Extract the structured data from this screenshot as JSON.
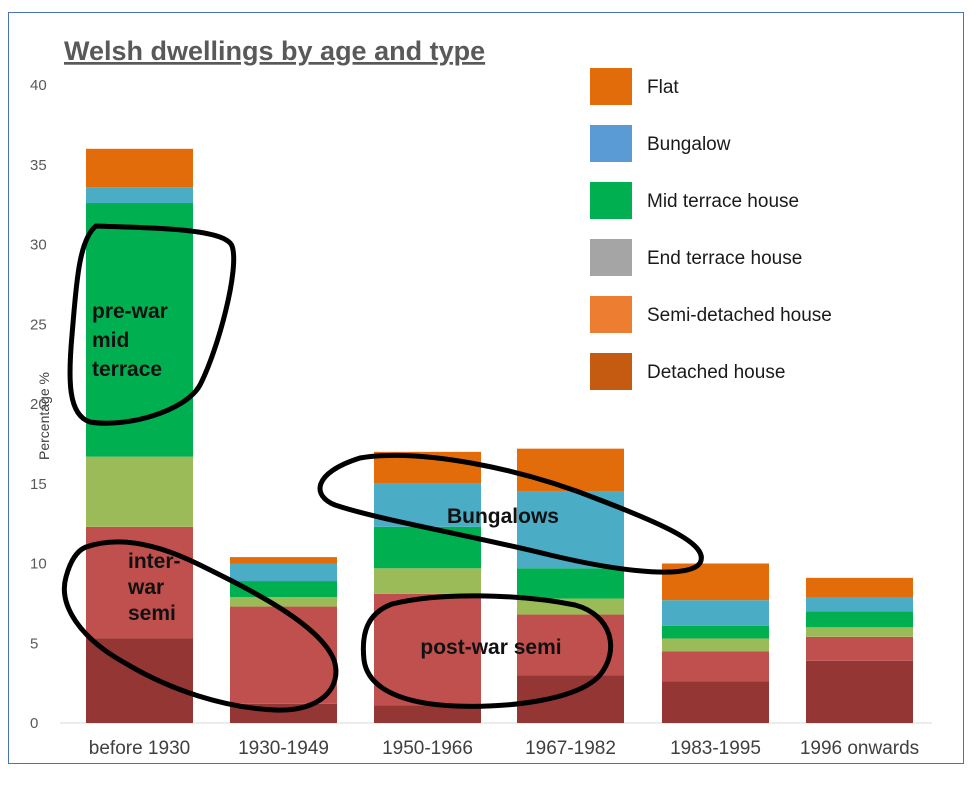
{
  "chart_data": {
    "type": "bar",
    "stacked": true,
    "title": "Welsh dwellings by age and type",
    "ylabel": "Percentage %",
    "xlabel": "",
    "ylim": [
      0,
      40
    ],
    "yticks": [
      0,
      5,
      10,
      15,
      20,
      25,
      30,
      35,
      40
    ],
    "categories": [
      "before 1930",
      "1930-1949",
      "1950-1966",
      "1967-1982",
      "1983-1995",
      "1996 onwards"
    ],
    "legend_position": "top-right",
    "grid": false,
    "series": [
      {
        "name": "Detached house",
        "color": "#943634",
        "values": [
          5.3,
          1.2,
          1.1,
          3.0,
          2.6,
          3.9
        ]
      },
      {
        "name": "Semi-detached house",
        "color": "#c0504d",
        "values": [
          7.0,
          6.1,
          7.0,
          3.8,
          1.9,
          1.5
        ]
      },
      {
        "name": "End terrace house",
        "color": "#9bbb59",
        "values": [
          4.4,
          0.6,
          1.6,
          1.0,
          0.8,
          0.6
        ]
      },
      {
        "name": "Mid terrace house",
        "color": "#00b050",
        "values": [
          15.9,
          1.0,
          2.6,
          1.9,
          0.8,
          1.0
        ]
      },
      {
        "name": "Bungalow",
        "color": "#4bacc6",
        "values": [
          1.0,
          1.1,
          2.7,
          4.8,
          1.6,
          0.9
        ]
      },
      {
        "name": "Flat",
        "color": "#e36c0a",
        "values": [
          2.4,
          0.4,
          2.0,
          2.7,
          2.3,
          1.2
        ]
      }
    ],
    "legend": [
      {
        "label": "Flat",
        "color": "#e36c0a"
      },
      {
        "label": "Bungalow",
        "color": "#5b9bd5"
      },
      {
        "label": "Mid terrace house",
        "color": "#00b050"
      },
      {
        "label": "End terrace house",
        "color": "#a5a5a5"
      },
      {
        "label": "Semi-detached house",
        "color": "#ed7d31"
      },
      {
        "label": "Detached house",
        "color": "#c55a11"
      }
    ],
    "annotations": [
      {
        "text": "pre-war mid terrace",
        "lines": [
          "pre-war",
          "mid",
          "terrace"
        ]
      },
      {
        "text": "inter-war semi",
        "lines": [
          "inter-",
          "war",
          "semi"
        ]
      },
      {
        "text": "Bungalows",
        "lines": [
          "Bungalows"
        ]
      },
      {
        "text": "post-war semi",
        "lines": [
          "post-war semi"
        ]
      }
    ]
  }
}
